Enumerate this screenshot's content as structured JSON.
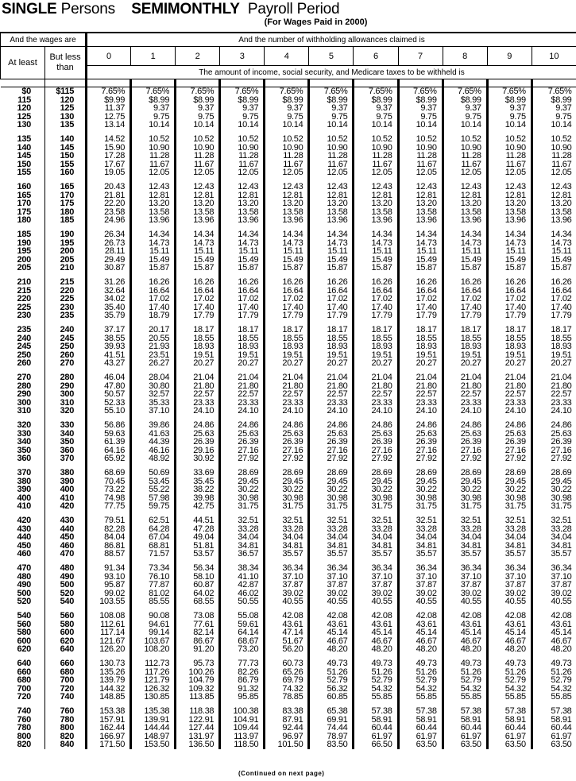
{
  "title": {
    "status": "SINGLE",
    "status_suffix": "Persons",
    "period": "SEMIMONTHLY",
    "period_suffix": "Payroll Period"
  },
  "subtitle": "(For Wages Paid in 2000)",
  "header": {
    "wages_label": "And the wages are",
    "allowances_label": "And the number of withholding allowances claimed is",
    "at_least": "At least",
    "but_less_than": "But less than",
    "allowances": [
      "0",
      "1",
      "2",
      "3",
      "4",
      "5",
      "6",
      "7",
      "8",
      "9",
      "10"
    ],
    "amount_label": "The amount of income, social security, and Medicare taxes to be withheld is"
  },
  "rows": [
    [
      "$0",
      "$115",
      "7.65%",
      "7.65%",
      "7.65%",
      "7.65%",
      "7.65%",
      "7.65%",
      "7.65%",
      "7.65%",
      "7.65%",
      "7.65%",
      "7.65%"
    ],
    [
      "115",
      "120",
      "$9.99",
      "$8.99",
      "$8.99",
      "$8.99",
      "$8.99",
      "$8.99",
      "$8.99",
      "$8.99",
      "$8.99",
      "$8.99",
      "$8.99"
    ],
    [
      "120",
      "125",
      "11.37",
      "9.37",
      "9.37",
      "9.37",
      "9.37",
      "9.37",
      "9.37",
      "9.37",
      "9.37",
      "9.37",
      "9.37"
    ],
    [
      "125",
      "130",
      "12.75",
      "9.75",
      "9.75",
      "9.75",
      "9.75",
      "9.75",
      "9.75",
      "9.75",
      "9.75",
      "9.75",
      "9.75"
    ],
    [
      "130",
      "135",
      "13.14",
      "10.14",
      "10.14",
      "10.14",
      "10.14",
      "10.14",
      "10.14",
      "10.14",
      "10.14",
      "10.14",
      "10.14"
    ],
    [
      "135",
      "140",
      "14.52",
      "10.52",
      "10.52",
      "10.52",
      "10.52",
      "10.52",
      "10.52",
      "10.52",
      "10.52",
      "10.52",
      "10.52"
    ],
    [
      "140",
      "145",
      "15.90",
      "10.90",
      "10.90",
      "10.90",
      "10.90",
      "10.90",
      "10.90",
      "10.90",
      "10.90",
      "10.90",
      "10.90"
    ],
    [
      "145",
      "150",
      "17.28",
      "11.28",
      "11.28",
      "11.28",
      "11.28",
      "11.28",
      "11.28",
      "11.28",
      "11.28",
      "11.28",
      "11.28"
    ],
    [
      "150",
      "155",
      "17.67",
      "11.67",
      "11.67",
      "11.67",
      "11.67",
      "11.67",
      "11.67",
      "11.67",
      "11.67",
      "11.67",
      "11.67"
    ],
    [
      "155",
      "160",
      "19.05",
      "12.05",
      "12.05",
      "12.05",
      "12.05",
      "12.05",
      "12.05",
      "12.05",
      "12.05",
      "12.05",
      "12.05"
    ],
    [
      "160",
      "165",
      "20.43",
      "12.43",
      "12.43",
      "12.43",
      "12.43",
      "12.43",
      "12.43",
      "12.43",
      "12.43",
      "12.43",
      "12.43"
    ],
    [
      "165",
      "170",
      "21.81",
      "12.81",
      "12.81",
      "12.81",
      "12.81",
      "12.81",
      "12.81",
      "12.81",
      "12.81",
      "12.81",
      "12.81"
    ],
    [
      "170",
      "175",
      "22.20",
      "13.20",
      "13.20",
      "13.20",
      "13.20",
      "13.20",
      "13.20",
      "13.20",
      "13.20",
      "13.20",
      "13.20"
    ],
    [
      "175",
      "180",
      "23.58",
      "13.58",
      "13.58",
      "13.58",
      "13.58",
      "13.58",
      "13.58",
      "13.58",
      "13.58",
      "13.58",
      "13.58"
    ],
    [
      "180",
      "185",
      "24.96",
      "13.96",
      "13.96",
      "13.96",
      "13.96",
      "13.96",
      "13.96",
      "13.96",
      "13.96",
      "13.96",
      "13.96"
    ],
    [
      "185",
      "190",
      "26.34",
      "14.34",
      "14.34",
      "14.34",
      "14.34",
      "14.34",
      "14.34",
      "14.34",
      "14.34",
      "14.34",
      "14.34"
    ],
    [
      "190",
      "195",
      "26.73",
      "14.73",
      "14.73",
      "14.73",
      "14.73",
      "14.73",
      "14.73",
      "14.73",
      "14.73",
      "14.73",
      "14.73"
    ],
    [
      "195",
      "200",
      "28.11",
      "15.11",
      "15.11",
      "15.11",
      "15.11",
      "15.11",
      "15.11",
      "15.11",
      "15.11",
      "15.11",
      "15.11"
    ],
    [
      "200",
      "205",
      "29.49",
      "15.49",
      "15.49",
      "15.49",
      "15.49",
      "15.49",
      "15.49",
      "15.49",
      "15.49",
      "15.49",
      "15.49"
    ],
    [
      "205",
      "210",
      "30.87",
      "15.87",
      "15.87",
      "15.87",
      "15.87",
      "15.87",
      "15.87",
      "15.87",
      "15.87",
      "15.87",
      "15.87"
    ],
    [
      "210",
      "215",
      "31.26",
      "16.26",
      "16.26",
      "16.26",
      "16.26",
      "16.26",
      "16.26",
      "16.26",
      "16.26",
      "16.26",
      "16.26"
    ],
    [
      "215",
      "220",
      "32.64",
      "16.64",
      "16.64",
      "16.64",
      "16.64",
      "16.64",
      "16.64",
      "16.64",
      "16.64",
      "16.64",
      "16.64"
    ],
    [
      "220",
      "225",
      "34.02",
      "17.02",
      "17.02",
      "17.02",
      "17.02",
      "17.02",
      "17.02",
      "17.02",
      "17.02",
      "17.02",
      "17.02"
    ],
    [
      "225",
      "230",
      "35.40",
      "17.40",
      "17.40",
      "17.40",
      "17.40",
      "17.40",
      "17.40",
      "17.40",
      "17.40",
      "17.40",
      "17.40"
    ],
    [
      "230",
      "235",
      "35.79",
      "18.79",
      "17.79",
      "17.79",
      "17.79",
      "17.79",
      "17.79",
      "17.79",
      "17.79",
      "17.79",
      "17.79"
    ],
    [
      "235",
      "240",
      "37.17",
      "20.17",
      "18.17",
      "18.17",
      "18.17",
      "18.17",
      "18.17",
      "18.17",
      "18.17",
      "18.17",
      "18.17"
    ],
    [
      "240",
      "245",
      "38.55",
      "20.55",
      "18.55",
      "18.55",
      "18.55",
      "18.55",
      "18.55",
      "18.55",
      "18.55",
      "18.55",
      "18.55"
    ],
    [
      "245",
      "250",
      "39.93",
      "21.93",
      "18.93",
      "18.93",
      "18.93",
      "18.93",
      "18.93",
      "18.93",
      "18.93",
      "18.93",
      "18.93"
    ],
    [
      "250",
      "260",
      "41.51",
      "23.51",
      "19.51",
      "19.51",
      "19.51",
      "19.51",
      "19.51",
      "19.51",
      "19.51",
      "19.51",
      "19.51"
    ],
    [
      "260",
      "270",
      "43.27",
      "26.27",
      "20.27",
      "20.27",
      "20.27",
      "20.27",
      "20.27",
      "20.27",
      "20.27",
      "20.27",
      "20.27"
    ],
    [
      "270",
      "280",
      "46.04",
      "28.04",
      "21.04",
      "21.04",
      "21.04",
      "21.04",
      "21.04",
      "21.04",
      "21.04",
      "21.04",
      "21.04"
    ],
    [
      "280",
      "290",
      "47.80",
      "30.80",
      "21.80",
      "21.80",
      "21.80",
      "21.80",
      "21.80",
      "21.80",
      "21.80",
      "21.80",
      "21.80"
    ],
    [
      "290",
      "300",
      "50.57",
      "32.57",
      "22.57",
      "22.57",
      "22.57",
      "22.57",
      "22.57",
      "22.57",
      "22.57",
      "22.57",
      "22.57"
    ],
    [
      "300",
      "310",
      "52.33",
      "35.33",
      "23.33",
      "23.33",
      "23.33",
      "23.33",
      "23.33",
      "23.33",
      "23.33",
      "23.33",
      "23.33"
    ],
    [
      "310",
      "320",
      "55.10",
      "37.10",
      "24.10",
      "24.10",
      "24.10",
      "24.10",
      "24.10",
      "24.10",
      "24.10",
      "24.10",
      "24.10"
    ],
    [
      "320",
      "330",
      "56.86",
      "39.86",
      "24.86",
      "24.86",
      "24.86",
      "24.86",
      "24.86",
      "24.86",
      "24.86",
      "24.86",
      "24.86"
    ],
    [
      "330",
      "340",
      "59.63",
      "41.63",
      "25.63",
      "25.63",
      "25.63",
      "25.63",
      "25.63",
      "25.63",
      "25.63",
      "25.63",
      "25.63"
    ],
    [
      "340",
      "350",
      "61.39",
      "44.39",
      "26.39",
      "26.39",
      "26.39",
      "26.39",
      "26.39",
      "26.39",
      "26.39",
      "26.39",
      "26.39"
    ],
    [
      "350",
      "360",
      "64.16",
      "46.16",
      "29.16",
      "27.16",
      "27.16",
      "27.16",
      "27.16",
      "27.16",
      "27.16",
      "27.16",
      "27.16"
    ],
    [
      "360",
      "370",
      "65.92",
      "48.92",
      "30.92",
      "27.92",
      "27.92",
      "27.92",
      "27.92",
      "27.92",
      "27.92",
      "27.92",
      "27.92"
    ],
    [
      "370",
      "380",
      "68.69",
      "50.69",
      "33.69",
      "28.69",
      "28.69",
      "28.69",
      "28.69",
      "28.69",
      "28.69",
      "28.69",
      "28.69"
    ],
    [
      "380",
      "390",
      "70.45",
      "53.45",
      "35.45",
      "29.45",
      "29.45",
      "29.45",
      "29.45",
      "29.45",
      "29.45",
      "29.45",
      "29.45"
    ],
    [
      "390",
      "400",
      "73.22",
      "55.22",
      "38.22",
      "30.22",
      "30.22",
      "30.22",
      "30.22",
      "30.22",
      "30.22",
      "30.22",
      "30.22"
    ],
    [
      "400",
      "410",
      "74.98",
      "57.98",
      "39.98",
      "30.98",
      "30.98",
      "30.98",
      "30.98",
      "30.98",
      "30.98",
      "30.98",
      "30.98"
    ],
    [
      "410",
      "420",
      "77.75",
      "59.75",
      "42.75",
      "31.75",
      "31.75",
      "31.75",
      "31.75",
      "31.75",
      "31.75",
      "31.75",
      "31.75"
    ],
    [
      "420",
      "430",
      "79.51",
      "62.51",
      "44.51",
      "32.51",
      "32.51",
      "32.51",
      "32.51",
      "32.51",
      "32.51",
      "32.51",
      "32.51"
    ],
    [
      "430",
      "440",
      "82.28",
      "64.28",
      "47.28",
      "33.28",
      "33.28",
      "33.28",
      "33.28",
      "33.28",
      "33.28",
      "33.28",
      "33.28"
    ],
    [
      "440",
      "450",
      "84.04",
      "67.04",
      "49.04",
      "34.04",
      "34.04",
      "34.04",
      "34.04",
      "34.04",
      "34.04",
      "34.04",
      "34.04"
    ],
    [
      "450",
      "460",
      "86.81",
      "68.81",
      "51.81",
      "34.81",
      "34.81",
      "34.81",
      "34.81",
      "34.81",
      "34.81",
      "34.81",
      "34.81"
    ],
    [
      "460",
      "470",
      "88.57",
      "71.57",
      "53.57",
      "36.57",
      "35.57",
      "35.57",
      "35.57",
      "35.57",
      "35.57",
      "35.57",
      "35.57"
    ],
    [
      "470",
      "480",
      "91.34",
      "73.34",
      "56.34",
      "38.34",
      "36.34",
      "36.34",
      "36.34",
      "36.34",
      "36.34",
      "36.34",
      "36.34"
    ],
    [
      "480",
      "490",
      "93.10",
      "76.10",
      "58.10",
      "41.10",
      "37.10",
      "37.10",
      "37.10",
      "37.10",
      "37.10",
      "37.10",
      "37.10"
    ],
    [
      "490",
      "500",
      "95.87",
      "77.87",
      "60.87",
      "42.87",
      "37.87",
      "37.87",
      "37.87",
      "37.87",
      "37.87",
      "37.87",
      "37.87"
    ],
    [
      "500",
      "520",
      "99.02",
      "81.02",
      "64.02",
      "46.02",
      "39.02",
      "39.02",
      "39.02",
      "39.02",
      "39.02",
      "39.02",
      "39.02"
    ],
    [
      "520",
      "540",
      "103.55",
      "85.55",
      "68.55",
      "50.55",
      "40.55",
      "40.55",
      "40.55",
      "40.55",
      "40.55",
      "40.55",
      "40.55"
    ],
    [
      "540",
      "560",
      "108.08",
      "90.08",
      "73.08",
      "55.08",
      "42.08",
      "42.08",
      "42.08",
      "42.08",
      "42.08",
      "42.08",
      "42.08"
    ],
    [
      "560",
      "580",
      "112.61",
      "94.61",
      "77.61",
      "59.61",
      "43.61",
      "43.61",
      "43.61",
      "43.61",
      "43.61",
      "43.61",
      "43.61"
    ],
    [
      "580",
      "600",
      "117.14",
      "99.14",
      "82.14",
      "64.14",
      "47.14",
      "45.14",
      "45.14",
      "45.14",
      "45.14",
      "45.14",
      "45.14"
    ],
    [
      "600",
      "620",
      "121.67",
      "103.67",
      "86.67",
      "68.67",
      "51.67",
      "46.67",
      "46.67",
      "46.67",
      "46.67",
      "46.67",
      "46.67"
    ],
    [
      "620",
      "640",
      "126.20",
      "108.20",
      "91.20",
      "73.20",
      "56.20",
      "48.20",
      "48.20",
      "48.20",
      "48.20",
      "48.20",
      "48.20"
    ],
    [
      "640",
      "660",
      "130.73",
      "112.73",
      "95.73",
      "77.73",
      "60.73",
      "49.73",
      "49.73",
      "49.73",
      "49.73",
      "49.73",
      "49.73"
    ],
    [
      "660",
      "680",
      "135.26",
      "117.26",
      "100.26",
      "82.26",
      "65.26",
      "51.26",
      "51.26",
      "51.26",
      "51.26",
      "51.26",
      "51.26"
    ],
    [
      "680",
      "700",
      "139.79",
      "121.79",
      "104.79",
      "86.79",
      "69.79",
      "52.79",
      "52.79",
      "52.79",
      "52.79",
      "52.79",
      "52.79"
    ],
    [
      "700",
      "720",
      "144.32",
      "126.32",
      "109.32",
      "91.32",
      "74.32",
      "56.32",
      "54.32",
      "54.32",
      "54.32",
      "54.32",
      "54.32"
    ],
    [
      "720",
      "740",
      "148.85",
      "130.85",
      "113.85",
      "95.85",
      "78.85",
      "60.85",
      "55.85",
      "55.85",
      "55.85",
      "55.85",
      "55.85"
    ],
    [
      "740",
      "760",
      "153.38",
      "135.38",
      "118.38",
      "100.38",
      "83.38",
      "65.38",
      "57.38",
      "57.38",
      "57.38",
      "57.38",
      "57.38"
    ],
    [
      "760",
      "780",
      "157.91",
      "139.91",
      "122.91",
      "104.91",
      "87.91",
      "69.91",
      "58.91",
      "58.91",
      "58.91",
      "58.91",
      "58.91"
    ],
    [
      "780",
      "800",
      "162.44",
      "144.44",
      "127.44",
      "109.44",
      "92.44",
      "74.44",
      "60.44",
      "60.44",
      "60.44",
      "60.44",
      "60.44"
    ],
    [
      "800",
      "820",
      "166.97",
      "148.97",
      "131.97",
      "113.97",
      "96.97",
      "78.97",
      "61.97",
      "61.97",
      "61.97",
      "61.97",
      "61.97"
    ],
    [
      "820",
      "840",
      "171.50",
      "153.50",
      "136.50",
      "118.50",
      "101.50",
      "83.50",
      "66.50",
      "63.50",
      "63.50",
      "63.50",
      "63.50"
    ]
  ],
  "footer": "(Continued on next page)"
}
